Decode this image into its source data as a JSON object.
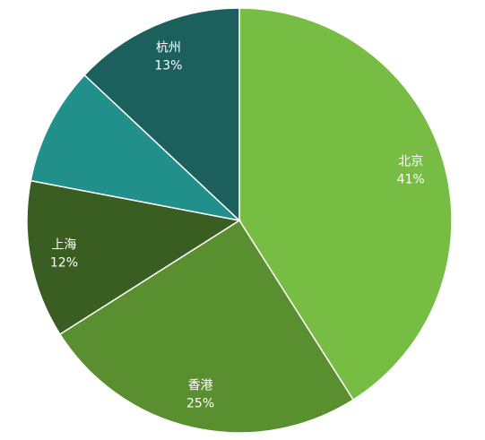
{
  "chart_data": {
    "type": "pie",
    "categories": [
      "北京",
      "香港",
      "上海",
      null,
      "杭州"
    ],
    "values": [
      41,
      25,
      12,
      9,
      13
    ],
    "value_labels": [
      "41%",
      "25%",
      "12%",
      null,
      "13%"
    ],
    "colors": [
      "#77bc43",
      "#5a8f30",
      "#3a5e22",
      "#22908a",
      "#1b605c"
    ]
  }
}
